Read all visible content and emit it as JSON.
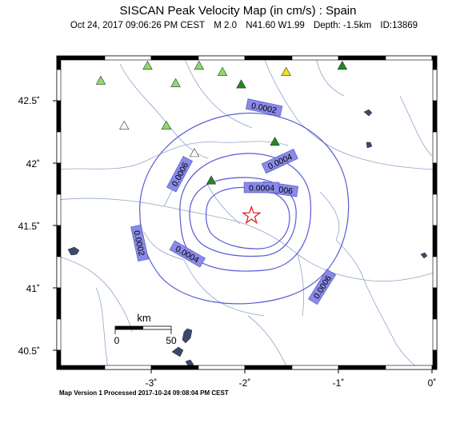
{
  "title": "SISCAN Peak Velocity Map (in cm/s) : Spain",
  "subtitle": {
    "datetime": "Oct 24, 2017 09:06:26 PM CEST",
    "magnitude": "M 2.0",
    "location": "N41.60 W1.99",
    "depth": "Depth: -1.5km",
    "event_id": "ID:13869"
  },
  "footer": "Map Version 1 Processed 2017-10-24 09:08:04 PM CEST",
  "axes": {
    "lat_labels": [
      "42.5˚",
      "42˚",
      "41.5˚",
      "41˚",
      "40.5˚"
    ],
    "lon_labels": [
      "-3˚",
      "-2˚",
      "-1˚",
      "0˚"
    ]
  },
  "scale_bar": {
    "unit": "km",
    "start": "0",
    "end": "50"
  },
  "contours": {
    "labels": [
      "0.0002",
      "0.0004",
      "0.0006",
      "0.0006",
      "0.0004",
      "0.0002",
      "0.0006",
      "0.0004"
    ],
    "color": "#5a5ad6"
  },
  "epicenter": {
    "lat": 41.6,
    "lon": -1.99,
    "symbol": "star-icon",
    "color": "#e02020"
  },
  "stations": [
    {
      "lon": -3.6,
      "lat": 42.68,
      "color": "#88dd66"
    },
    {
      "lon": -3.1,
      "lat": 42.8,
      "color": "#88dd66"
    },
    {
      "lon": -2.55,
      "lat": 42.8,
      "color": "#88dd66"
    },
    {
      "lon": -2.8,
      "lat": 42.66,
      "color": "#88dd66"
    },
    {
      "lon": -2.3,
      "lat": 42.75,
      "color": "#88dd66"
    },
    {
      "lon": -2.1,
      "lat": 42.65,
      "color": "#1e8a1e"
    },
    {
      "lon": -1.62,
      "lat": 42.75,
      "color": "#f2e020"
    },
    {
      "lon": -1.02,
      "lat": 42.8,
      "color": "#1e8a1e"
    },
    {
      "lon": -3.35,
      "lat": 42.32,
      "color": "#ffffff"
    },
    {
      "lon": -2.9,
      "lat": 42.32,
      "color": "#88dd66"
    },
    {
      "lon": -2.6,
      "lat": 42.1,
      "color": "#ffffff"
    },
    {
      "lon": -1.74,
      "lat": 42.19,
      "color": "#1e8a1e"
    },
    {
      "lon": -2.42,
      "lat": 41.88,
      "color": "#1e8a1e"
    }
  ]
}
